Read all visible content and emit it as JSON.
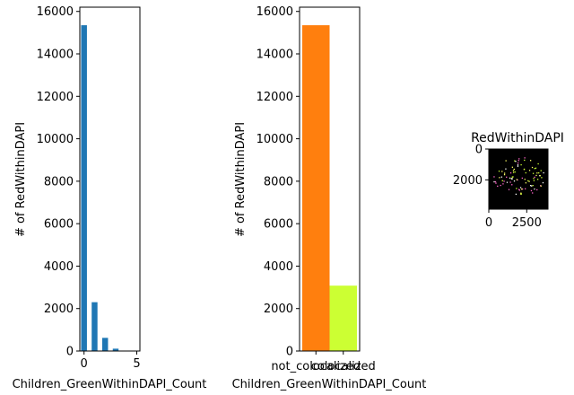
{
  "chart_data": [
    {
      "type": "bar",
      "xlabel": "Children_GreenWithinDAPI_Count",
      "ylabel": "# of RedWithinDAPI",
      "x": [
        0,
        1,
        2,
        3,
        4
      ],
      "values": [
        15350,
        2300,
        620,
        110,
        15
      ],
      "xlim": [
        -0.4,
        5.3
      ],
      "ylim": [
        0,
        16200
      ],
      "xticks": [
        0,
        5
      ],
      "yticks": [
        0,
        2000,
        4000,
        6000,
        8000,
        10000,
        12000,
        14000,
        16000
      ],
      "color": "#1f77b4"
    },
    {
      "type": "bar",
      "xlabel": "Children_GreenWithinDAPI_Count",
      "ylabel": "# of RedWithinDAPI",
      "categories": [
        "not_colocalized",
        "colocalized"
      ],
      "values": [
        15350,
        3080
      ],
      "colors": [
        "#ff7f0e",
        "#ccff33"
      ],
      "ylim": [
        0,
        16200
      ],
      "yticks": [
        0,
        2000,
        4000,
        6000,
        8000,
        10000,
        12000,
        14000,
        16000
      ]
    },
    {
      "type": "heatmap",
      "title": "RedWithinDAPI",
      "xlim": [
        0,
        3900
      ],
      "ylim": [
        3900,
        0
      ],
      "xticks": [
        0,
        2500
      ],
      "yticks": [
        0,
        2000
      ],
      "background": "#000000",
      "dot_colors": [
        "#ffff66",
        "#ccff33",
        "#ff66cc",
        "#ffffff"
      ]
    }
  ]
}
